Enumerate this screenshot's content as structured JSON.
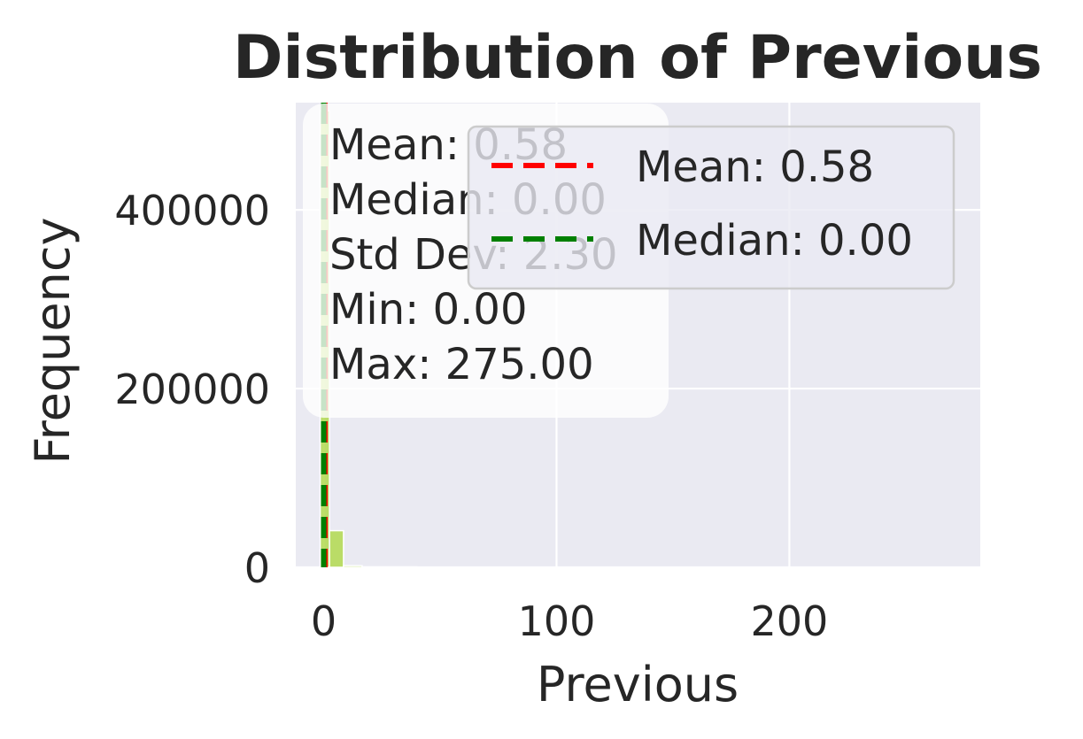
{
  "chart_data": {
    "type": "bar",
    "title": "Distribution of Previous",
    "xlabel": "Previous",
    "ylabel": "Frequency",
    "xlim": [
      -12,
      282
    ],
    "ylim": [
      0,
      520000
    ],
    "x_ticks": [
      0,
      100,
      200
    ],
    "y_ticks": [
      0,
      200000,
      400000
    ],
    "grid": true,
    "background": "#eaeaf2",
    "bar_color": "#b2d94f",
    "bin_width": 8,
    "bins": [
      {
        "x0": -1.5,
        "x1": 2.5,
        "count": 511000
      },
      {
        "x0": 2.5,
        "x1": 8.5,
        "count": 41000
      },
      {
        "x0": 8.5,
        "x1": 16.5,
        "count": 1800
      },
      {
        "x0": 16.5,
        "x1": 40,
        "count": 500
      },
      {
        "x0": 40,
        "x1": 275,
        "count": 120
      }
    ],
    "mean_line": {
      "x": 0.58,
      "label": "Mean: 0.58",
      "color": "#ff0000"
    },
    "median_line": {
      "x": 0.0,
      "label": "Median: 0.00",
      "color": "#008000"
    },
    "stats_box": [
      "Mean: 0.58",
      "Median: 0.00",
      "Std Dev: 2.30",
      "Min: 0.00",
      "Max: 275.00"
    ],
    "legend": {
      "placement": "top-right",
      "entries": [
        {
          "label": "Mean: 0.58",
          "color": "#ff0000"
        },
        {
          "label": "Median: 0.00",
          "color": "#008000"
        }
      ]
    }
  }
}
